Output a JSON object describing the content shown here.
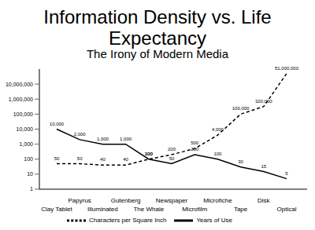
{
  "chart_data": {
    "type": "line",
    "title": "Information Density vs. Life Expectancy",
    "subtitle": "The Irony of Modern Media",
    "categories": [
      "Clay Tablet",
      "Papyrus",
      "Illuminated",
      "Gutenberg",
      "The Whale",
      "Newspaper",
      "Microfilm",
      "Microfiche",
      "Tape",
      "Disk",
      "Optical"
    ],
    "series": [
      {
        "name": "Years of Use",
        "color": "#000000",
        "line_style": "solid",
        "values": [
          10000,
          2000,
          1000,
          1000,
          100,
          50,
          200,
          100,
          30,
          15,
          5
        ],
        "value_labels": [
          "10,000",
          "2,000",
          "1,000",
          "1,000",
          "100",
          "50",
          "200",
          "100",
          "30",
          "15",
          "5"
        ]
      },
      {
        "name": "Characters per Square Inch",
        "color": "#000000",
        "line_style": "dashed",
        "values": [
          50,
          50,
          40,
          40,
          100,
          200,
          500,
          4000,
          100000,
          320000,
          51000000
        ],
        "value_labels": [
          "50",
          "50",
          "40",
          "40",
          "100",
          "200",
          "500",
          "4,000",
          "100,000",
          "320,000",
          "51,000,000"
        ]
      }
    ],
    "log": "y",
    "ylim": [
      1,
      100000000
    ],
    "yticks": [
      1,
      10,
      100,
      {
        "value": 1000,
        "label": "1,000"
      },
      {
        "value": 10000,
        "label": "10,000"
      },
      {
        "value": 100000,
        "label": "100,000"
      },
      {
        "value": 1000000,
        "label": "1,000,000"
      },
      {
        "value": 10000000,
        "label": "10,000,000"
      }
    ],
    "marker": "none",
    "data_labels": true,
    "legend": "bottom",
    "grid": false
  }
}
